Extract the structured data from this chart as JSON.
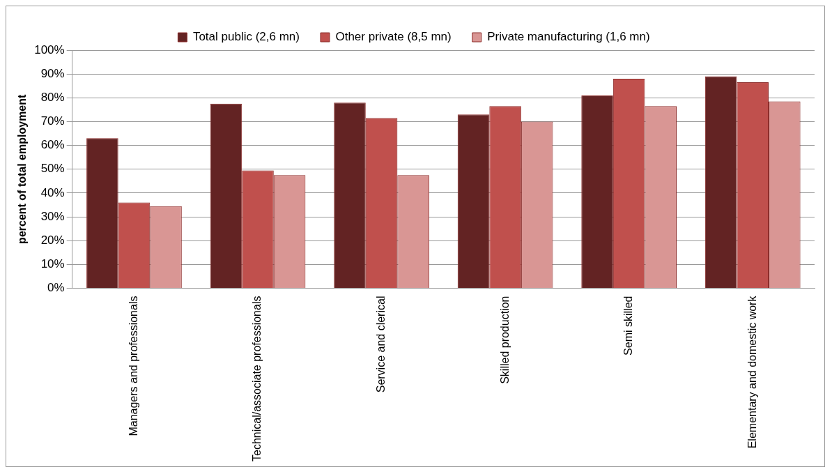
{
  "chart_data": {
    "type": "bar",
    "ylabel": "percent of total employment",
    "categories": [
      "Managers and professionals",
      "Technical/associate professionals",
      "Service and clerical",
      "Skilled production",
      "Semi skilled",
      "Elementary and domestic work"
    ],
    "series": [
      {
        "name": "Total public (2,6 mn)",
        "color": "#632323",
        "values": [
          63,
          77.5,
          78,
          73,
          81,
          89
        ]
      },
      {
        "name": "Other private (8,5 mn)",
        "color": "#c0504d",
        "values": [
          36,
          49.5,
          71.5,
          76.5,
          88,
          86.5
        ]
      },
      {
        "name": "Private manufacturing (1,6 mn)",
        "color": "#d99694",
        "values": [
          34.5,
          47.5,
          47.5,
          70,
          76.5,
          78.5
        ]
      }
    ],
    "ylim": [
      0,
      100
    ],
    "yticks": [
      {
        "value": 0,
        "label": "0%"
      },
      {
        "value": 10,
        "label": "10%"
      },
      {
        "value": 20,
        "label": "20%"
      },
      {
        "value": 30,
        "label": "30%"
      },
      {
        "value": 40,
        "label": "40%"
      },
      {
        "value": 50,
        "label": "50%"
      },
      {
        "value": 60,
        "label": "60%"
      },
      {
        "value": 70,
        "label": "70%"
      },
      {
        "value": 80,
        "label": "80%"
      },
      {
        "value": 90,
        "label": "90%"
      },
      {
        "value": 100,
        "label": "100%"
      }
    ],
    "grid": "y",
    "legend": "top"
  }
}
